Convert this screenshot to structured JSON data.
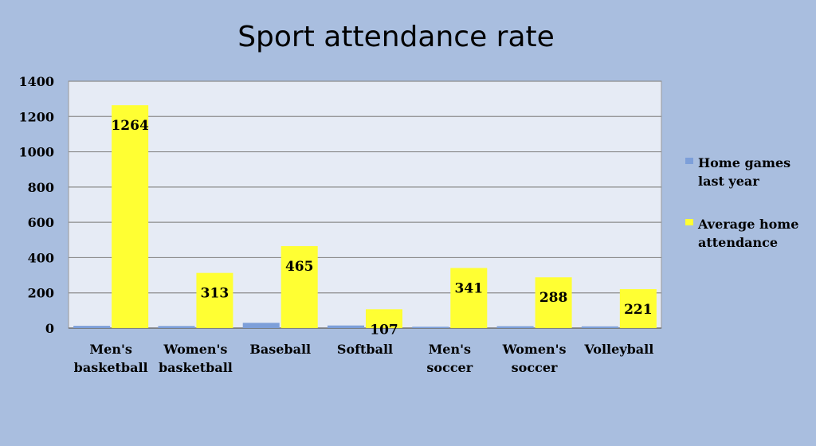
{
  "chart_data": {
    "type": "bar",
    "title": "Sport attendance rate",
    "categories": [
      [
        "Men's",
        "basketball"
      ],
      [
        "Women's",
        "basketball"
      ],
      [
        "Baseball"
      ],
      [
        "Softball"
      ],
      [
        "Men's",
        "soccer"
      ],
      [
        "Women's",
        "soccer"
      ],
      [
        "Volleyball"
      ]
    ],
    "series": [
      {
        "name": [
          "Home games",
          "last year"
        ],
        "color": "#7d9fd9",
        "values": [
          13,
          12,
          30,
          15,
          8,
          11,
          10
        ],
        "show_labels": false
      },
      {
        "name": [
          "Average home",
          "attendance"
        ],
        "color": "#ffff33",
        "values": [
          1264,
          313,
          465,
          107,
          341,
          288,
          221
        ],
        "show_labels": true
      }
    ],
    "ylim": [
      0,
      1400
    ],
    "yticks": [
      0,
      200,
      400,
      600,
      800,
      1000,
      1200,
      1400
    ],
    "grid": true,
    "legend": "right",
    "plot_background": "#e6ebf5",
    "gridline_color": "#8c8c8c"
  }
}
